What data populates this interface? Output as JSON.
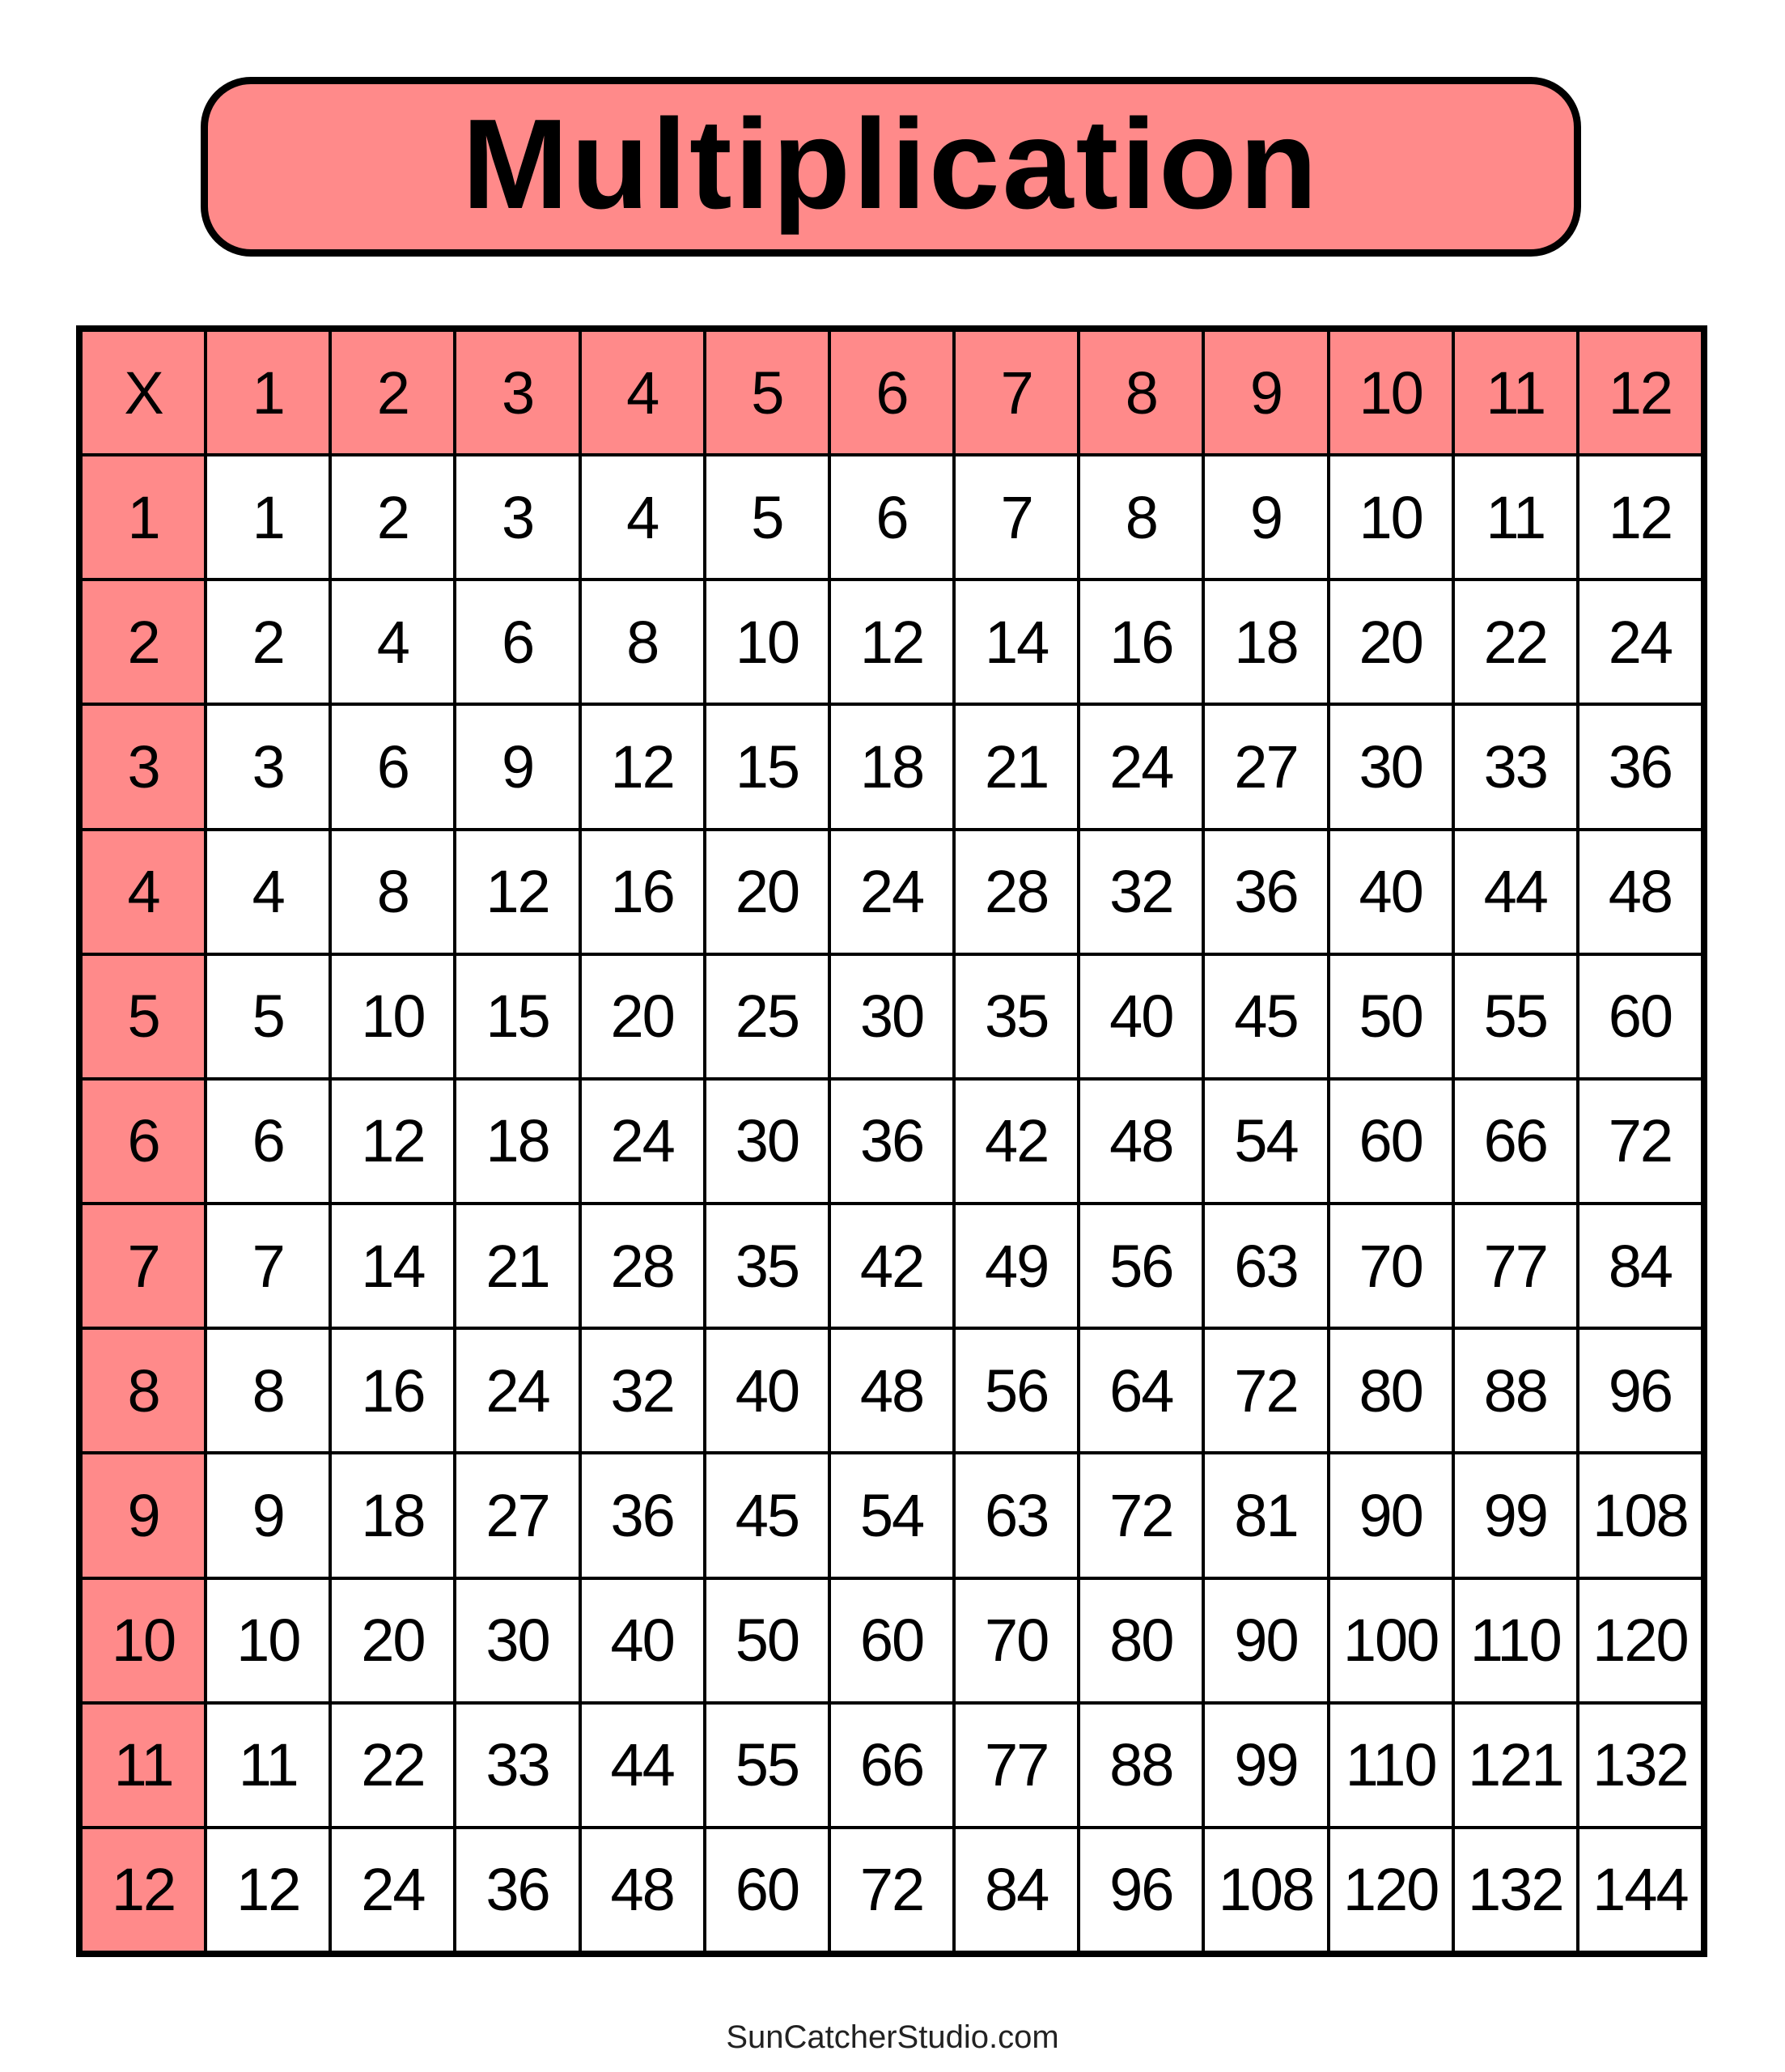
{
  "title": "Multiplication",
  "colors": {
    "header_fill": "#ff8a8a",
    "cell_fill": "#ffffff",
    "grid_lines": "#000000"
  },
  "table": {
    "corner": "X",
    "column_headers": [
      "1",
      "2",
      "3",
      "4",
      "5",
      "6",
      "7",
      "8",
      "9",
      "10",
      "11",
      "12"
    ],
    "rows": [
      {
        "header": "1",
        "cells": [
          "1",
          "2",
          "3",
          "4",
          "5",
          "6",
          "7",
          "8",
          "9",
          "10",
          "11",
          "12"
        ]
      },
      {
        "header": "2",
        "cells": [
          "2",
          "4",
          "6",
          "8",
          "10",
          "12",
          "14",
          "16",
          "18",
          "20",
          "22",
          "24"
        ]
      },
      {
        "header": "3",
        "cells": [
          "3",
          "6",
          "9",
          "12",
          "15",
          "18",
          "21",
          "24",
          "27",
          "30",
          "33",
          "36"
        ]
      },
      {
        "header": "4",
        "cells": [
          "4",
          "8",
          "12",
          "16",
          "20",
          "24",
          "28",
          "32",
          "36",
          "40",
          "44",
          "48"
        ]
      },
      {
        "header": "5",
        "cells": [
          "5",
          "10",
          "15",
          "20",
          "25",
          "30",
          "35",
          "40",
          "45",
          "50",
          "55",
          "60"
        ]
      },
      {
        "header": "6",
        "cells": [
          "6",
          "12",
          "18",
          "24",
          "30",
          "36",
          "42",
          "48",
          "54",
          "60",
          "66",
          "72"
        ]
      },
      {
        "header": "7",
        "cells": [
          "7",
          "14",
          "21",
          "28",
          "35",
          "42",
          "49",
          "56",
          "63",
          "70",
          "77",
          "84"
        ]
      },
      {
        "header": "8",
        "cells": [
          "8",
          "16",
          "24",
          "32",
          "40",
          "48",
          "56",
          "64",
          "72",
          "80",
          "88",
          "96"
        ]
      },
      {
        "header": "9",
        "cells": [
          "9",
          "18",
          "27",
          "36",
          "45",
          "54",
          "63",
          "72",
          "81",
          "90",
          "99",
          "108"
        ]
      },
      {
        "header": "10",
        "cells": [
          "10",
          "20",
          "30",
          "40",
          "50",
          "60",
          "70",
          "80",
          "90",
          "100",
          "110",
          "120"
        ]
      },
      {
        "header": "11",
        "cells": [
          "11",
          "22",
          "33",
          "44",
          "55",
          "66",
          "77",
          "88",
          "99",
          "110",
          "121",
          "132"
        ]
      },
      {
        "header": "12",
        "cells": [
          "12",
          "24",
          "36",
          "48",
          "60",
          "72",
          "84",
          "96",
          "108",
          "120",
          "132",
          "144"
        ]
      }
    ]
  },
  "footer": "SunCatcherStudio.com"
}
